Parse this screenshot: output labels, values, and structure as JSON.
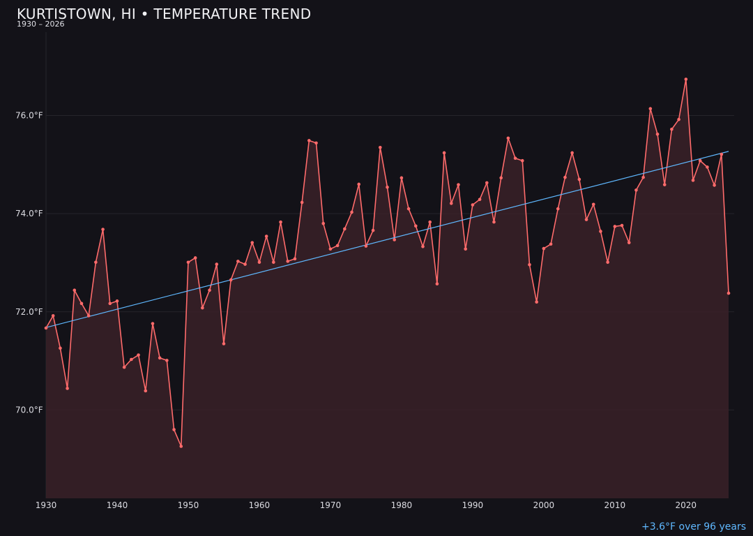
{
  "header": {
    "title": "KURTISTOWN, HI • TEMPERATURE TREND",
    "subtitle": "1930 – 2026"
  },
  "footer": {
    "trend_note": "+3.6°F over 96 years"
  },
  "colors": {
    "background": "#131218",
    "series_line": "#ff6b6b",
    "series_fill": "#3a2128",
    "trend_line": "#5fb8ff",
    "grid": "#26252b"
  },
  "chart_data": {
    "type": "line",
    "title": "KURTISTOWN, HI • TEMPERATURE TREND",
    "subtitle": "1930 – 2026",
    "xlabel": "",
    "ylabel": "",
    "xlim": [
      1930,
      2026
    ],
    "ylim": [
      68.2,
      77.7
    ],
    "x_ticks": [
      1930,
      1940,
      1950,
      1960,
      1970,
      1980,
      1990,
      2000,
      2010,
      2020
    ],
    "y_ticks": [
      70.0,
      72.0,
      74.0,
      76.0
    ],
    "y_tick_labels": [
      "70.0°F",
      "72.0°F",
      "74.0°F",
      "76.0°F"
    ],
    "grid": true,
    "area_fill": true,
    "trend": {
      "from": [
        1930,
        71.68
      ],
      "to": [
        2026,
        75.27
      ]
    },
    "series": [
      {
        "x": [
          1930,
          1931,
          1932,
          1933,
          1934,
          1935,
          1936,
          1937,
          1938,
          1939,
          1940,
          1941,
          1942,
          1943,
          1944,
          1945,
          1946,
          1947,
          1948,
          1949,
          1950,
          1951,
          1952,
          1953,
          1954,
          1955,
          1956,
          1957,
          1958,
          1959,
          1960,
          1961,
          1962,
          1963,
          1964,
          1965,
          1966,
          1967,
          1968,
          1969,
          1970,
          1971,
          1972,
          1973,
          1974,
          1975,
          1976,
          1977,
          1978,
          1979,
          1980,
          1981,
          1982,
          1983,
          1984,
          1985,
          1986,
          1987,
          1988,
          1989,
          1990,
          1991,
          1992,
          1993,
          1994,
          1995,
          1996,
          1997,
          1998,
          1999,
          2000,
          2001,
          2002,
          2003,
          2004,
          2005,
          2006,
          2007,
          2008,
          2009,
          2010,
          2011,
          2012,
          2013,
          2014,
          2015,
          2016,
          2017,
          2018,
          2019,
          2020,
          2021,
          2022,
          2023,
          2024,
          2025,
          2026
        ],
        "values": [
          71.67,
          71.92,
          71.26,
          70.44,
          72.44,
          72.17,
          71.92,
          73.01,
          73.68,
          72.17,
          72.22,
          70.87,
          71.03,
          71.12,
          70.39,
          71.76,
          71.06,
          71.01,
          69.6,
          69.26,
          73.01,
          73.1,
          72.08,
          72.44,
          72.97,
          71.35,
          72.65,
          73.03,
          72.97,
          73.41,
          73.01,
          73.54,
          73.01,
          73.83,
          73.03,
          73.08,
          74.23,
          75.49,
          75.44,
          73.8,
          73.28,
          73.35,
          73.69,
          74.03,
          74.6,
          73.34,
          73.66,
          75.35,
          74.54,
          73.47,
          74.73,
          74.1,
          73.75,
          73.33,
          73.83,
          72.57,
          75.24,
          74.21,
          74.59,
          73.28,
          74.18,
          74.29,
          74.63,
          73.83,
          74.73,
          75.54,
          75.13,
          75.08,
          72.96,
          72.2,
          73.29,
          73.38,
          74.1,
          74.74,
          75.24,
          74.7,
          73.88,
          74.19,
          73.64,
          73.01,
          73.74,
          73.76,
          73.41,
          74.48,
          74.74,
          76.14,
          75.62,
          74.59,
          75.72,
          75.92,
          76.74,
          74.68,
          75.08,
          74.95,
          74.58,
          75.21,
          72.38
        ]
      }
    ]
  }
}
